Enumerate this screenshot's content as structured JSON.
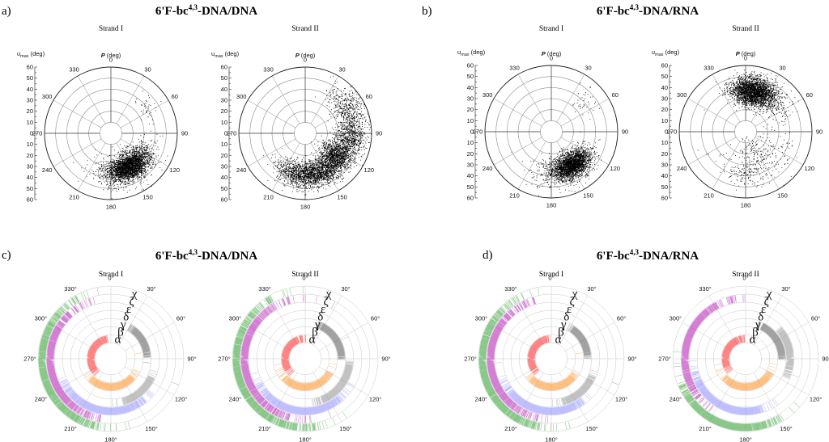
{
  "chart_data": [
    {
      "type": "scatter",
      "coordinate_system": "polar",
      "panel_label": "a)",
      "title_main": "6'F-bc",
      "title_sup": "4,3",
      "title_rest": "-DNA/DNA",
      "angular_label": "P (deg)",
      "radial_label": "υ",
      "radial_label_sub": "max",
      "radial_label_unit": " (deg)",
      "angular_ticks": [
        "0",
        "30",
        "60",
        "90",
        "120",
        "150",
        "180",
        "210",
        "240",
        "270",
        "300",
        "330"
      ],
      "radial_ticks": [
        "0",
        "10",
        "20",
        "30",
        "40",
        "50",
        "60"
      ],
      "rlim": [
        0,
        60
      ],
      "grid": true,
      "subplots": [
        {
          "name": "Strand I",
          "clusters": [
            {
              "P_center": 150,
              "P_spread": 17,
              "vmax_center": 35,
              "vmax_spread": 5.5,
              "count": 2600
            },
            {
              "P_center": 160,
              "P_spread": 24,
              "vmax_center": 37,
              "vmax_spread": 8,
              "count": 500
            },
            {
              "P_center": 55,
              "P_spread": 10,
              "vmax_center": 40,
              "vmax_spread": 6,
              "count": 40
            }
          ]
        },
        {
          "name": "Strand II",
          "clusters": [
            {
              "P_center": 158,
              "P_spread": 22,
              "vmax_center": 38,
              "vmax_spread": 6,
              "count": 1800
            },
            {
              "P_center": 125,
              "P_spread": 12,
              "vmax_center": 34,
              "vmax_spread": 7,
              "count": 900
            },
            {
              "P_center": 92,
              "P_spread": 14,
              "vmax_center": 42,
              "vmax_spread": 7,
              "count": 700
            },
            {
              "P_center": 55,
              "P_spread": 12,
              "vmax_center": 45,
              "vmax_spread": 7,
              "count": 350
            },
            {
              "P_center": 195,
              "P_spread": 15,
              "vmax_center": 38,
              "vmax_spread": 6,
              "count": 500
            }
          ]
        }
      ]
    },
    {
      "type": "scatter",
      "coordinate_system": "polar",
      "panel_label": "b)",
      "title_main": "6'F-bc",
      "title_sup": "4,3",
      "title_rest": "-DNA/RNA",
      "angular_label": "P (deg)",
      "radial_label": "υ",
      "radial_label_sub": "max",
      "radial_label_unit": " (deg)",
      "angular_ticks": [
        "0",
        "30",
        "60",
        "90",
        "120",
        "150",
        "180",
        "210",
        "240",
        "270",
        "300",
        "330"
      ],
      "radial_ticks": [
        "0",
        "10",
        "20",
        "30",
        "40",
        "50",
        "60"
      ],
      "rlim": [
        0,
        60
      ],
      "grid": true,
      "subplots": [
        {
          "name": "Strand I",
          "clusters": [
            {
              "P_center": 148,
              "P_spread": 15,
              "vmax_center": 36,
              "vmax_spread": 5.5,
              "count": 2400
            },
            {
              "P_center": 165,
              "P_spread": 22,
              "vmax_center": 38,
              "vmax_spread": 7,
              "count": 400
            },
            {
              "P_center": 45,
              "P_spread": 8,
              "vmax_center": 40,
              "vmax_spread": 6,
              "count": 40
            }
          ]
        },
        {
          "name": "Strand II",
          "clusters": [
            {
              "P_center": 10,
              "P_spread": 15,
              "vmax_center": 38,
              "vmax_spread": 6,
              "count": 2600
            },
            {
              "P_center": 30,
              "P_spread": 20,
              "vmax_center": 38,
              "vmax_spread": 7,
              "count": 400
            },
            {
              "P_center": 150,
              "P_spread": 30,
              "vmax_center": 32,
              "vmax_spread": 12,
              "count": 300
            },
            {
              "P_center": 185,
              "P_spread": 12,
              "vmax_center": 38,
              "vmax_spread": 5,
              "count": 60
            }
          ]
        }
      ]
    },
    {
      "type": "torsion_wheel",
      "coordinate_system": "polar",
      "panel_label": "c)",
      "title_main": "6'F-bc",
      "title_sup": "4,3",
      "title_rest": "-DNA/DNA",
      "angular_ticks": [
        "0°",
        "30°",
        "60°",
        "90°",
        "120°",
        "150°",
        "180°",
        "210°",
        "240°",
        "270°",
        "300°",
        "330°"
      ],
      "ring_order_inner_to_outer": [
        "α",
        "β",
        "γ",
        "δ",
        "ε",
        "ζ",
        "χ"
      ],
      "ring_colors": {
        "α": "#ff2020",
        "β": "#ff8c1a",
        "γ": "#555555",
        "δ": "#8f8f8f",
        "ε": "#8a8aff",
        "ζ": "#b015b0",
        "χ": "#2a9a2a"
      },
      "subplots": [
        {
          "name": "Strand I",
          "rings": [
            {
              "torsion": "α",
              "center_deg": 288,
              "spread_deg": 22
            },
            {
              "torsion": "β",
              "center_deg": 175,
              "spread_deg": 20
            },
            {
              "torsion": "γ",
              "center_deg": 58,
              "spread_deg": 10
            },
            {
              "torsion": "δ",
              "center_deg": 140,
              "spread_deg": 10
            },
            {
              "torsion": "ε",
              "center_deg": 188,
              "spread_deg": 20
            },
            {
              "torsion": "ζ",
              "center_deg": 262,
              "spread_deg": 28
            },
            {
              "torsion": "χ",
              "center_deg": 255,
              "spread_deg": 30
            }
          ]
        },
        {
          "name": "Strand II",
          "rings": [
            {
              "torsion": "α",
              "center_deg": 290,
              "spread_deg": 24
            },
            {
              "torsion": "β",
              "center_deg": 175,
              "spread_deg": 22
            },
            {
              "torsion": "γ",
              "center_deg": 55,
              "spread_deg": 12
            },
            {
              "torsion": "δ",
              "center_deg": 130,
              "spread_deg": 14
            },
            {
              "torsion": "ε",
              "center_deg": 185,
              "spread_deg": 22
            },
            {
              "torsion": "ζ",
              "center_deg": 265,
              "spread_deg": 32
            },
            {
              "torsion": "χ",
              "center_deg": 250,
              "spread_deg": 34
            }
          ]
        }
      ]
    },
    {
      "type": "torsion_wheel",
      "coordinate_system": "polar",
      "panel_label": "d)",
      "title_main": "6'F-bc",
      "title_sup": "4,3",
      "title_rest": "-DNA/RNA",
      "angular_ticks": [
        "0°",
        "30°",
        "60°",
        "90°",
        "120°",
        "150°",
        "180°",
        "210°",
        "240°",
        "270°",
        "300°",
        "330°"
      ],
      "ring_order_inner_to_outer": [
        "α",
        "β",
        "γ",
        "δ",
        "ε",
        "ζ",
        "χ"
      ],
      "ring_colors": {
        "α": "#ff2020",
        "β": "#ff8c1a",
        "γ": "#555555",
        "δ": "#8f8f8f",
        "ε": "#8a8aff",
        "ζ": "#b015b0",
        "χ": "#2a9a2a"
      },
      "subplots": [
        {
          "name": "Strand I",
          "rings": [
            {
              "torsion": "α",
              "center_deg": 290,
              "spread_deg": 22
            },
            {
              "torsion": "β",
              "center_deg": 175,
              "spread_deg": 20
            },
            {
              "torsion": "γ",
              "center_deg": 58,
              "spread_deg": 10
            },
            {
              "torsion": "δ",
              "center_deg": 140,
              "spread_deg": 10
            },
            {
              "torsion": "ε",
              "center_deg": 190,
              "spread_deg": 20
            },
            {
              "torsion": "ζ",
              "center_deg": 265,
              "spread_deg": 28
            },
            {
              "torsion": "χ",
              "center_deg": 255,
              "spread_deg": 30
            }
          ]
        },
        {
          "name": "Strand II",
          "rings": [
            {
              "torsion": "α",
              "center_deg": 292,
              "spread_deg": 22
            },
            {
              "torsion": "β",
              "center_deg": 175,
              "spread_deg": 22
            },
            {
              "torsion": "γ",
              "center_deg": 55,
              "spread_deg": 12
            },
            {
              "torsion": "δ",
              "center_deg": 80,
              "spread_deg": 12
            },
            {
              "torsion": "ε",
              "center_deg": 205,
              "spread_deg": 20
            },
            {
              "torsion": "ζ",
              "center_deg": 285,
              "spread_deg": 25
            },
            {
              "torsion": "χ",
              "center_deg": 200,
              "spread_deg": 20
            }
          ]
        }
      ]
    }
  ]
}
